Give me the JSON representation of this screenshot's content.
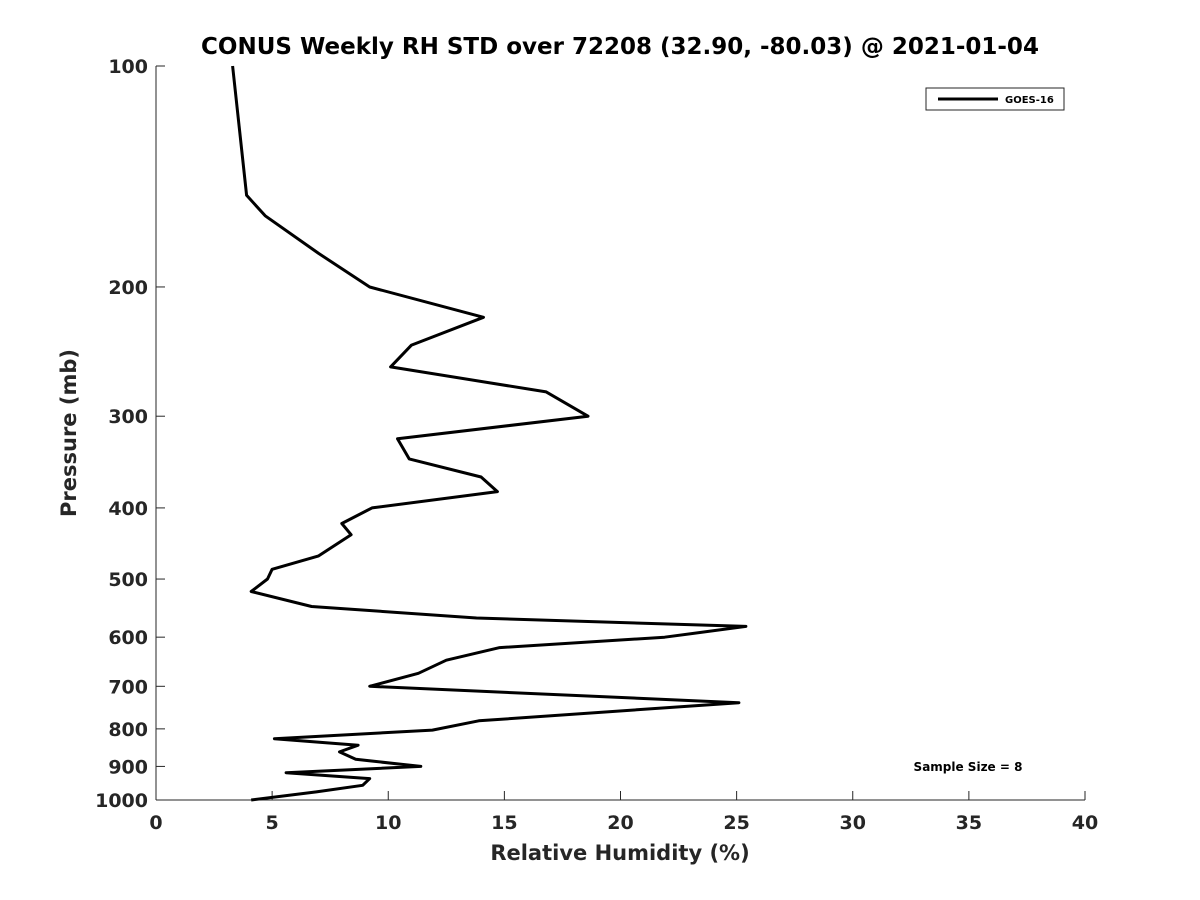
{
  "chart_data": {
    "type": "line",
    "title": "CONUS Weekly RH STD over 72208 (32.90, -80.03) @ 2021-01-04",
    "xlabel": "Relative Humidity (%)",
    "ylabel": "Pressure (mb)",
    "xlim": [
      0,
      40
    ],
    "ylim": [
      100,
      1000
    ],
    "y_scale": "log",
    "y_direction": "reversed",
    "x_ticks": [
      0,
      5,
      10,
      15,
      20,
      25,
      30,
      35,
      40
    ],
    "x_tick_labels": [
      "0",
      "5",
      "10",
      "15",
      "20",
      "25",
      "30",
      "35",
      "40"
    ],
    "y_ticks": [
      100,
      200,
      300,
      400,
      500,
      600,
      700,
      800,
      900,
      1000
    ],
    "y_tick_labels": [
      "100",
      "200",
      "300",
      "400",
      "500",
      "600",
      "700",
      "800",
      "900",
      "1000"
    ],
    "grid": false,
    "legend_position": "top-right",
    "annotation": "Sample Size = 8",
    "series": [
      {
        "name": "GOES-16",
        "color": "#000000",
        "x": [
          3.3,
          3.9,
          4.7,
          7.0,
          9.2,
          14.1,
          11.0,
          10.1,
          16.8,
          18.6,
          10.4,
          10.9,
          14.0,
          14.7,
          9.3,
          8.0,
          8.4,
          7.0,
          5.0,
          4.8,
          4.1,
          6.7,
          13.8,
          25.4,
          21.9,
          14.8,
          12.5,
          11.3,
          9.2,
          25.1,
          13.9,
          11.9,
          5.1,
          8.7,
          7.9,
          8.6,
          11.4,
          5.6,
          9.2,
          8.9,
          6.9,
          4.1
        ],
        "y": [
          100,
          150,
          160,
          180,
          200,
          220,
          240,
          257,
          278,
          300,
          322,
          343,
          363,
          380,
          400,
          420,
          435,
          465,
          485,
          500,
          520,
          545,
          565,
          580,
          600,
          620,
          645,
          672,
          700,
          737,
          780,
          803,
          825,
          842,
          860,
          880,
          900,
          918,
          935,
          955,
          975,
          1000
        ]
      }
    ]
  }
}
